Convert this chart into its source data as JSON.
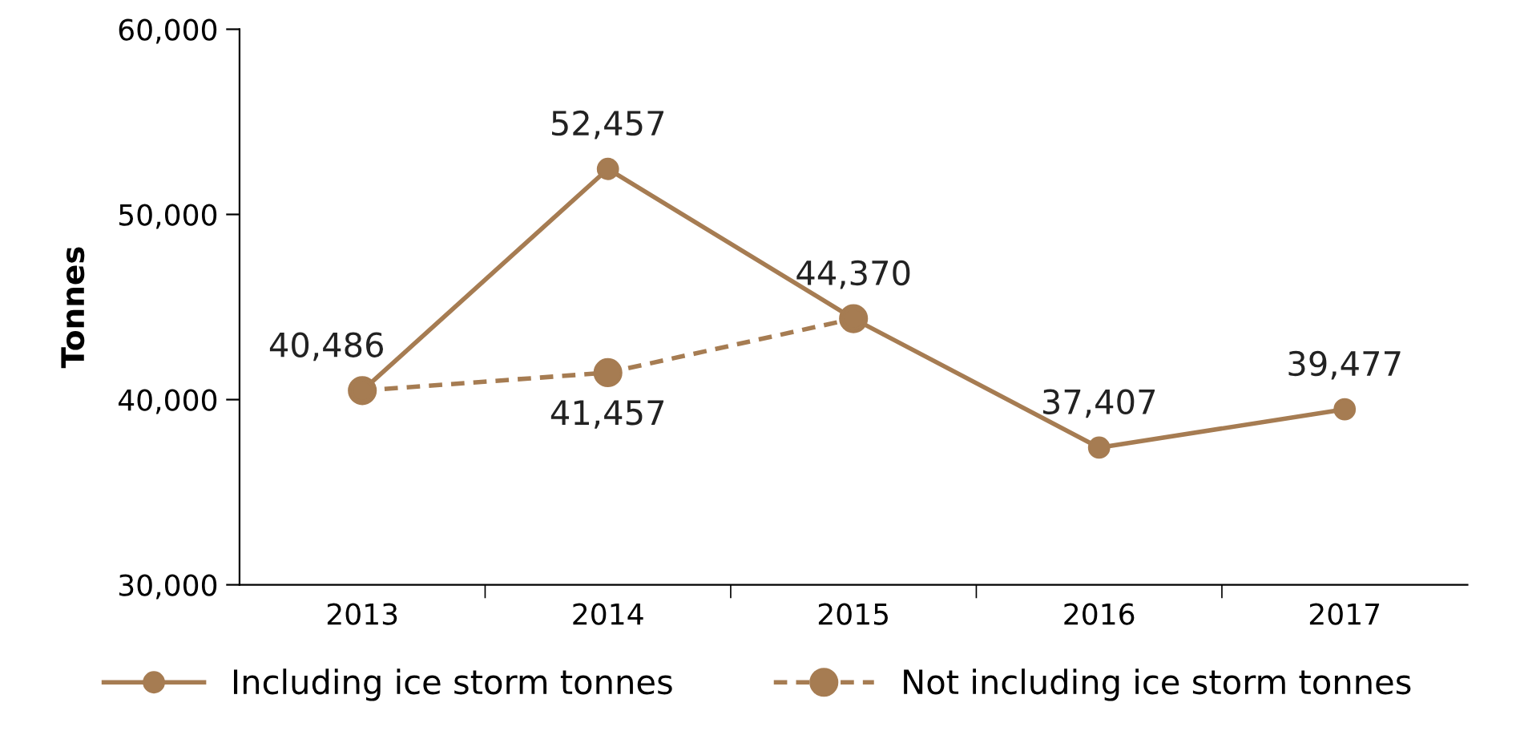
{
  "chart_data": {
    "type": "line",
    "ylabel": "Tonnes",
    "categories": [
      "2013",
      "2014",
      "2015",
      "2016",
      "2017"
    ],
    "series": [
      {
        "name": "Including ice storm tonnes",
        "color": "#a67c52",
        "line_style": "solid",
        "values": [
          40486,
          52457,
          44370,
          37407,
          39477
        ],
        "value_labels": [
          "40,486",
          "52,457",
          "44,370",
          "37,407",
          "39,477"
        ]
      },
      {
        "name": "Not including ice storm tonnes",
        "color": "#a67c52",
        "line_style": "dashed",
        "values": [
          40486,
          41457,
          44370,
          null,
          null
        ],
        "value_labels": [
          null,
          "41,457",
          null,
          null,
          null
        ]
      }
    ],
    "ylim": [
      30000,
      60000
    ],
    "yticks": [
      {
        "value": 30000,
        "label": "30,000"
      },
      {
        "value": 40000,
        "label": "40,000"
      },
      {
        "value": 50000,
        "label": "50,000"
      },
      {
        "value": 60000,
        "label": "60,000"
      }
    ],
    "marker": "circle",
    "grid": false,
    "legend": "bottom"
  }
}
